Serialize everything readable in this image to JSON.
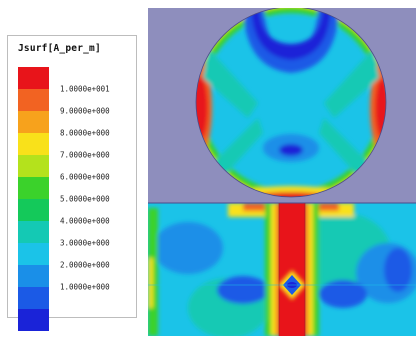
{
  "chart_data": {
    "type": "heatmap",
    "title": "Jsurf[A_per_m]",
    "legend": {
      "placement": "left",
      "colors": [
        "#e8141a",
        "#f26322",
        "#f7a21c",
        "#f9e11a",
        "#b4e21c",
        "#3bd22b",
        "#14c95a",
        "#14c9b4",
        "#1bc3e8",
        "#1a8fe8",
        "#1b5ae6",
        "#1a23d8"
      ],
      "tick_labels": [
        "1.0000e+001",
        "9.0000e+000",
        "8.0000e+000",
        "7.0000e+000",
        "6.0000e+000",
        "5.0000e+000",
        "4.0000e+000",
        "3.0000e+000",
        "2.0000e+000",
        "1.0000e+000"
      ],
      "tick_values": [
        10,
        9,
        8,
        7,
        6,
        5,
        4,
        3,
        2,
        1
      ],
      "range": [
        0,
        11
      ]
    },
    "scene": {
      "background": "#8e8ebd",
      "description_levels": {
        "circle_body": 3,
        "center_strip": 10,
        "ground_plane": 3
      }
    }
  }
}
